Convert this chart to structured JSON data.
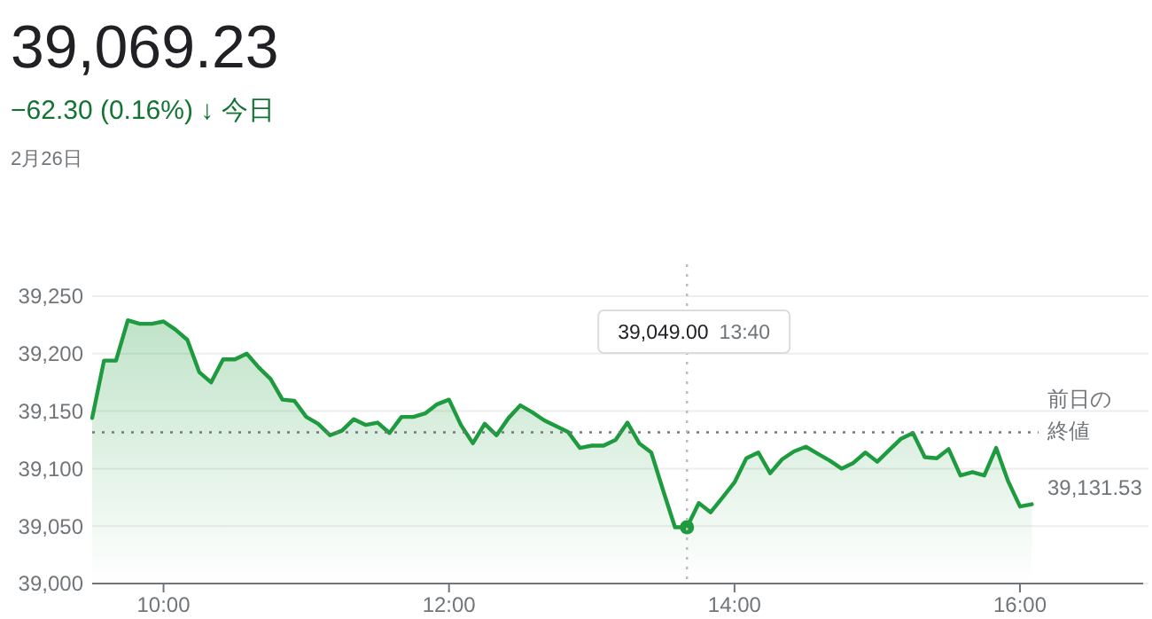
{
  "chart_data": {
    "type": "area",
    "title": "39,069.23",
    "subtitle": "−62.30 (0.16%) ↓ 今日",
    "x": [
      9.5,
      9.583,
      9.667,
      9.75,
      9.833,
      9.917,
      10,
      10.083,
      10.167,
      10.25,
      10.333,
      10.417,
      10.5,
      10.583,
      10.667,
      10.75,
      10.833,
      10.917,
      11,
      11.083,
      11.167,
      11.25,
      11.333,
      11.417,
      11.5,
      11.583,
      11.667,
      11.75,
      11.833,
      11.917,
      12,
      12.083,
      12.167,
      12.25,
      12.333,
      12.417,
      12.5,
      12.583,
      12.667,
      12.75,
      12.833,
      12.917,
      13,
      13.083,
      13.167,
      13.25,
      13.333,
      13.417,
      13.5,
      13.583,
      13.667,
      13.75,
      13.833,
      13.917,
      14,
      14.083,
      14.167,
      14.25,
      14.333,
      14.417,
      14.5,
      14.583,
      14.667,
      14.75,
      14.833,
      14.917,
      15,
      15.083,
      15.167,
      15.25,
      15.333,
      15.417,
      15.5,
      15.583,
      15.667,
      15.75,
      15.833,
      15.917,
      16,
      16.083
    ],
    "series": [
      {
        "color": "#1e9b3e",
        "values": [
          39144,
          39194,
          39194,
          39229,
          39226,
          39226,
          39228,
          39221,
          39212,
          39184,
          39175,
          39195,
          39195,
          39200,
          39188,
          39178,
          39160,
          39159,
          39145,
          39139,
          39129,
          39133,
          39143,
          39138,
          39140,
          39131,
          39145,
          39145,
          39148,
          39156,
          39160,
          39138,
          39122,
          39139,
          39129,
          39144,
          39155,
          39149,
          39142,
          39137,
          39132,
          39118,
          39120,
          39120,
          39125,
          39140,
          39122,
          39114,
          39081,
          39049,
          39049,
          39070,
          39062,
          39075,
          39088,
          39109,
          39114,
          39096,
          39108,
          39115,
          39119,
          39113,
          39107,
          39100,
          39105,
          39114,
          39106,
          39116,
          39126,
          39131,
          39110,
          39109,
          39117,
          39094,
          39097,
          39094,
          39118,
          39089,
          39067,
          39069
        ]
      },
      {
        "type": "scatter",
        "color": "#1e9b3e",
        "marker": "circle",
        "x": [
          13.667
        ],
        "values": [
          39049
        ]
      }
    ],
    "xlim": [
      9.5,
      16.9
    ],
    "xticks": [
      {
        "value": 10,
        "label": "10:00"
      },
      {
        "value": 12,
        "label": "12:00"
      },
      {
        "value": 14,
        "label": "14:00"
      },
      {
        "value": 16,
        "label": "16:00"
      }
    ],
    "ylim": [
      39000,
      39250
    ],
    "yticks": [
      {
        "value": 39000,
        "label": "39,000"
      },
      {
        "value": 39050,
        "label": "39,050"
      },
      {
        "value": 39100,
        "label": "39,100"
      },
      {
        "value": 39150,
        "label": "39,150"
      },
      {
        "value": 39200,
        "label": "39,200"
      },
      {
        "value": 39250,
        "label": "39,250"
      }
    ],
    "grid": "y",
    "marker": "none",
    "line_style": "solid",
    "ref_lines": [
      {
        "axis": "y",
        "value": 39131.53,
        "label": "前日の終値 39,131.53",
        "color": "#777777",
        "line_style": "dotted"
      },
      {
        "axis": "x",
        "value": 13.667,
        "color": "#bbbbbb",
        "line_style": "dotted"
      }
    ],
    "annotations": [
      "2月26日",
      "39,049.00 13:40"
    ]
  }
}
